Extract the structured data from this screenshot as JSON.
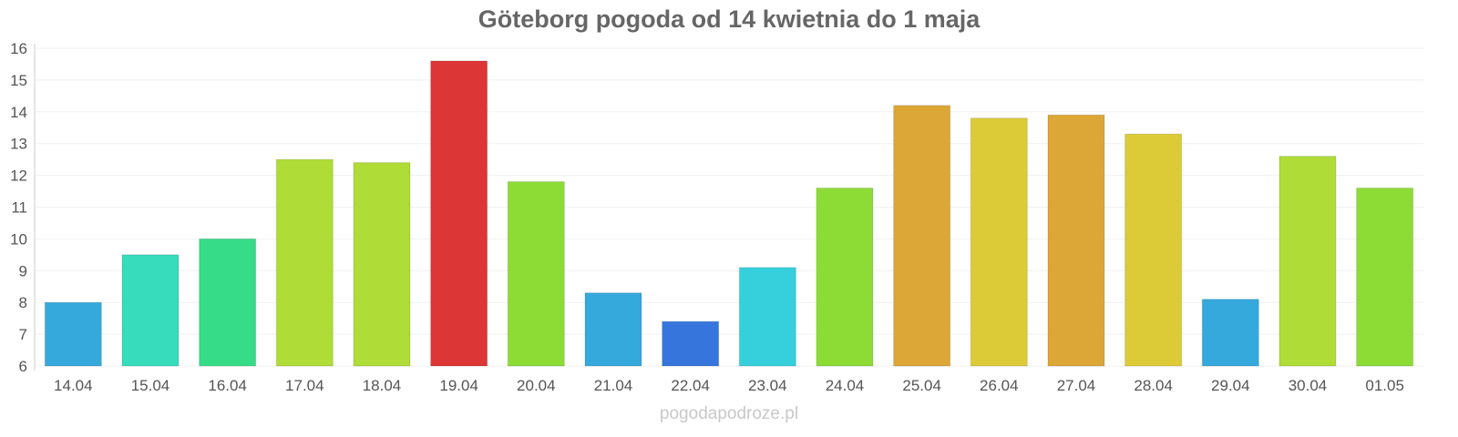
{
  "chart_data": {
    "type": "bar",
    "title": "Göteborg pogoda od 14 kwietnia do 1 maja",
    "xlabel": "",
    "ylabel": "",
    "ylim": [
      6,
      16
    ],
    "yticks": [
      "6",
      "7",
      "8",
      "9",
      "10",
      "11",
      "12",
      "13",
      "14",
      "15",
      "16"
    ],
    "grid": true,
    "categories": [
      "14.04",
      "15.04",
      "16.04",
      "17.04",
      "18.04",
      "19.04",
      "20.04",
      "21.04",
      "22.04",
      "23.04",
      "24.04",
      "25.04",
      "26.04",
      "27.04",
      "28.04",
      "29.04",
      "30.04",
      "01.05"
    ],
    "values": [
      8.0,
      9.5,
      10.0,
      12.5,
      12.4,
      15.6,
      11.8,
      8.3,
      7.4,
      9.1,
      11.6,
      14.2,
      13.8,
      13.9,
      13.3,
      8.1,
      12.6,
      11.6
    ],
    "colors": [
      "#36a9dc",
      "#36dcbb",
      "#36dc88",
      "#afdc36",
      "#afdc36",
      "#dc3636",
      "#8ddc36",
      "#36a9dc",
      "#3676dc",
      "#36cfdc",
      "#8ddc36",
      "#dca736",
      "#dccb36",
      "#dca736",
      "#dccb36",
      "#36a9dc",
      "#afdc36",
      "#8ddc36"
    ]
  },
  "watermark": "pogodapodroze.pl"
}
